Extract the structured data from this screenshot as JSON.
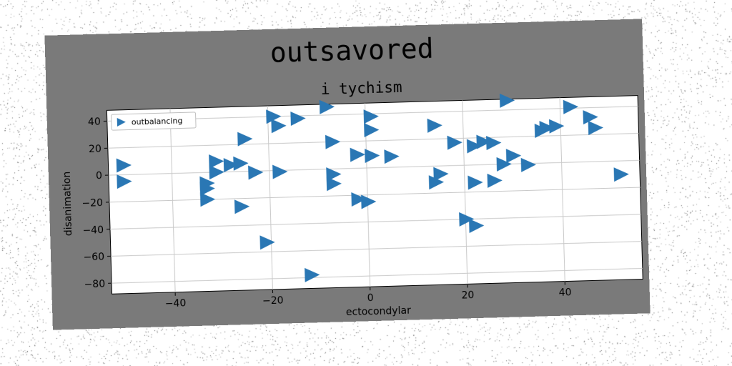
{
  "colors": {
    "marker": "#2a77b4",
    "figure_background": "#7a7a7a",
    "axes_background": "#ffffff",
    "grid": "#c8c8c8"
  },
  "chart_data": {
    "type": "scatter",
    "suptitle": "outsavored",
    "title": "i tychism",
    "xlabel": "ectocondylar",
    "ylabel": "disanimation",
    "xlim": [
      -53,
      56
    ],
    "ylim": [
      -88,
      48
    ],
    "xticks": [
      -40,
      -20,
      0,
      20,
      40
    ],
    "yticks": [
      -80,
      -60,
      -40,
      -20,
      0,
      20,
      40
    ],
    "xtick_labels": [
      "−40",
      "−20",
      "0",
      "20",
      "40"
    ],
    "ytick_labels": [
      "−80",
      "−60",
      "−40",
      "−20",
      "0",
      "20",
      "40"
    ],
    "grid": true,
    "legend_position": "top-left",
    "marker": "triangle-right",
    "series": [
      {
        "name": "outbalancing",
        "points": [
          [
            -50,
            7
          ],
          [
            -50,
            -5
          ],
          [
            -33,
            -8
          ],
          [
            -33,
            -12
          ],
          [
            -33,
            -20
          ],
          [
            -31,
            8
          ],
          [
            -31,
            0
          ],
          [
            -28,
            5
          ],
          [
            -26,
            6
          ],
          [
            -26,
            -26
          ],
          [
            -25,
            24
          ],
          [
            -23,
            -1
          ],
          [
            -21,
            -53
          ],
          [
            -19,
            40
          ],
          [
            -18,
            33
          ],
          [
            -18,
            -1
          ],
          [
            -14,
            38
          ],
          [
            -12,
            -78
          ],
          [
            -8,
            46
          ],
          [
            -7,
            20
          ],
          [
            -7,
            -4
          ],
          [
            -7,
            -11
          ],
          [
            -2,
            10
          ],
          [
            -2,
            -23
          ],
          [
            0,
            -25
          ],
          [
            1,
            38
          ],
          [
            1,
            28
          ],
          [
            1,
            9
          ],
          [
            5,
            8
          ],
          [
            14,
            30
          ],
          [
            14,
            -12
          ],
          [
            15,
            -6
          ],
          [
            18,
            17
          ],
          [
            20,
            -40
          ],
          [
            22,
            -45
          ],
          [
            22,
            14
          ],
          [
            22,
            -13
          ],
          [
            24,
            17
          ],
          [
            26,
            16
          ],
          [
            26,
            -12
          ],
          [
            28,
            0
          ],
          [
            29,
            47
          ],
          [
            30,
            6
          ],
          [
            33,
            -1
          ],
          [
            36,
            24
          ],
          [
            37,
            26
          ],
          [
            39,
            27
          ],
          [
            42,
            41
          ],
          [
            46,
            33
          ],
          [
            47,
            25
          ],
          [
            52,
            -10
          ]
        ]
      }
    ]
  }
}
